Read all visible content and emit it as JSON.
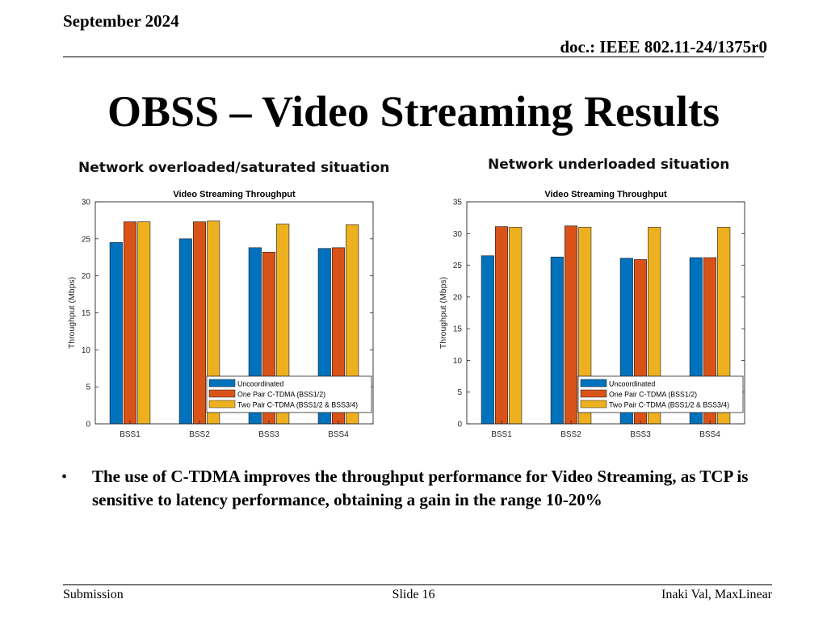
{
  "header": {
    "date": "September 2024",
    "doc": "doc.: IEEE 802.11-24/1375r0"
  },
  "slide_title": "OBSS – Video Streaming Results",
  "subtitles": {
    "left": "Network overloaded/saturated situation",
    "right": "Network underloaded situation"
  },
  "bullet": {
    "marker": "•",
    "text": "The use of C-TDMA improves the throughput performance for Video Streaming, as TCP is sensitive to latency performance, obtaining a gain in the range 10-20%"
  },
  "footer": {
    "left": "Submission",
    "center": "Slide 16",
    "right": "Inaki Val, MaxLinear"
  },
  "chart_data": [
    {
      "type": "bar",
      "title": "Video Streaming Throughput",
      "ylabel": "Throughput (Mbps)",
      "xlabel": "",
      "ylim": [
        0,
        30
      ],
      "yticks": [
        0,
        5,
        10,
        15,
        20,
        25,
        30
      ],
      "categories": [
        "BSS1",
        "BSS2",
        "BSS3",
        "BSS4"
      ],
      "series": [
        {
          "name": "Uncoordinated",
          "color": "#0072BD",
          "values": [
            24.5,
            25.0,
            23.8,
            23.7
          ]
        },
        {
          "name": "One Pair C-TDMA (BSS1/2)",
          "color": "#D95319",
          "values": [
            27.3,
            27.3,
            23.2,
            23.8
          ]
        },
        {
          "name": "Two Pair C-TDMA (BSS1/2 & BSS3/4)",
          "color": "#EDB120",
          "values": [
            27.3,
            27.4,
            27.0,
            26.9
          ]
        }
      ],
      "legend": "bottom-right",
      "grid": false
    },
    {
      "type": "bar",
      "title": "Video Streaming Throughput",
      "ylabel": "Throughput (Mbps)",
      "xlabel": "",
      "ylim": [
        0,
        35
      ],
      "yticks": [
        0,
        5,
        10,
        15,
        20,
        25,
        30,
        35
      ],
      "categories": [
        "BSS1",
        "BSS2",
        "BSS3",
        "BSS4"
      ],
      "series": [
        {
          "name": "Uncoordinated",
          "color": "#0072BD",
          "values": [
            26.5,
            26.3,
            26.1,
            26.2
          ]
        },
        {
          "name": "One Pair C-TDMA (BSS1/2)",
          "color": "#D95319",
          "values": [
            31.1,
            31.2,
            25.9,
            26.2
          ]
        },
        {
          "name": "Two Pair C-TDMA (BSS1/2 & BSS3/4)",
          "color": "#EDB120",
          "values": [
            31.0,
            31.0,
            31.0,
            31.0
          ]
        }
      ],
      "legend": "bottom-right",
      "grid": false
    }
  ]
}
